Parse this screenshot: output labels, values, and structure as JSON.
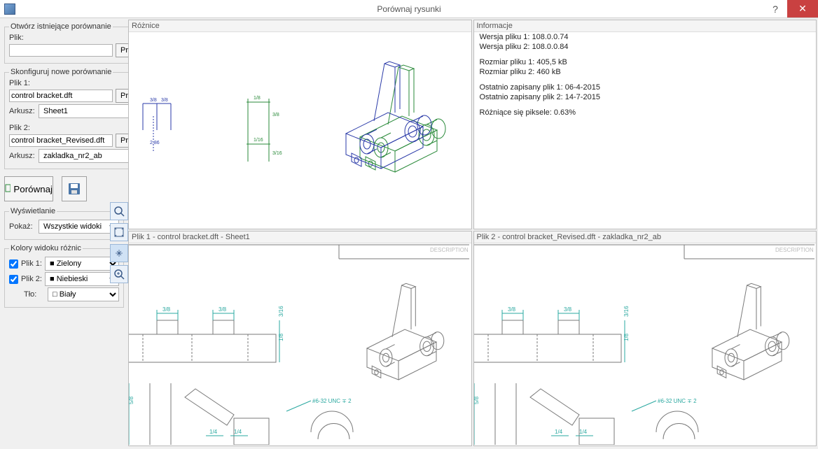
{
  "window": {
    "title": "Porównaj rysunki",
    "help": "?",
    "close": "✕"
  },
  "sidebar": {
    "open_existing": {
      "legend": "Otwórz istniejące porównanie",
      "file_label": "Plik:",
      "browse": "Przegląd"
    },
    "configure": {
      "legend": "Skonfiguruj nowe porównanie",
      "file1_label": "Plik 1:",
      "file1_value": "control bracket.dft",
      "file1_browse": "Przegląd",
      "sheet1_label": "Arkusz:",
      "sheet1_value": "Sheet1",
      "file2_label": "Plik 2:",
      "file2_value": "control bracket_Revised.dft",
      "file2_browse": "Przegląd",
      "sheet2_label": "Arkusz:",
      "sheet2_value": "zakladka_nr2_ab"
    },
    "compare_btn": "Porównaj",
    "display": {
      "legend": "Wyświetlanie",
      "show_label": "Pokaż:",
      "show_value": "Wszystkie widoki"
    },
    "colors": {
      "legend": "Kolory widoku różnic",
      "file1_label": "Plik 1:",
      "file1_color_name": "Zielony",
      "file1_color": "#009933",
      "file2_label": "Plik 2:",
      "file2_color_name": "Niebieski",
      "file2_color": "#0033cc",
      "bg_label": "Tło:",
      "bg_color_name": "Biały",
      "bg_color": "#ffffff"
    }
  },
  "panels": {
    "diff_title": "Różnice",
    "info_title": "Informacje",
    "file1_title": "Plik 1 - control bracket.dft - Sheet1",
    "file2_title": "Plik 2 - control bracket_Revised.dft - zakladka_nr2_ab",
    "info": {
      "v1": "Wersja pliku 1: 108.0.0.74",
      "v2": "Wersja pliku 2: 108.0.0.84",
      "s1": "Rozmiar pliku 1: 405,5 kB",
      "s2": "Rozmiar pliku 2: 460 kB",
      "d1": "Ostatnio zapisany plik 1: 06-4-2015",
      "d2": "Ostatnio zapisany plik 2: 14-7-2015",
      "px": "Różniące się piksele: 0.63%"
    }
  },
  "drawing": {
    "diff_view": {
      "green": "#2a8a3a",
      "blue": "#2a3aa8",
      "dims": [
        "3/8",
        "3/8",
        "1/8",
        "3/8",
        "1/16",
        "3/16"
      ]
    },
    "sheet_view": {
      "line": "#7a7a7a",
      "dim_color": "#2aa8a0",
      "dims": [
        "3/8",
        "3/8",
        "1/8",
        "3/16",
        "5/8",
        "1/4",
        "1/4",
        "#6-32 UNC ∓ 2"
      ]
    }
  }
}
